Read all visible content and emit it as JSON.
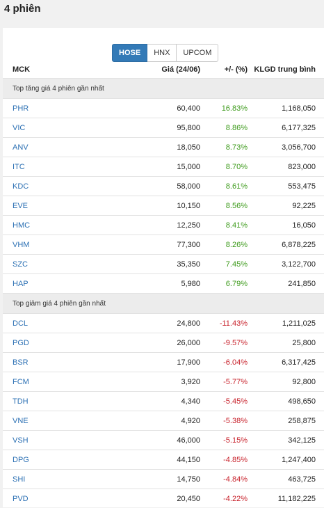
{
  "page": {
    "title": "4 phiên"
  },
  "tabs": [
    {
      "label": "HOSE",
      "active": true
    },
    {
      "label": "HNX",
      "active": false
    },
    {
      "label": "UPCOM",
      "active": false
    }
  ],
  "table": {
    "headers": {
      "symbol": "MCK",
      "price": "Giá (24/06)",
      "change": "+/- (%)",
      "volume": "KLGD trung bình"
    },
    "groups": [
      {
        "title": "Top tăng giá 4 phiên gần nhất",
        "direction": "up",
        "rows": [
          {
            "symbol": "PHR",
            "price": "60,400",
            "change": "16.83%",
            "volume": "1,168,050"
          },
          {
            "symbol": "VIC",
            "price": "95,800",
            "change": "8.86%",
            "volume": "6,177,325"
          },
          {
            "symbol": "ANV",
            "price": "18,050",
            "change": "8.73%",
            "volume": "3,056,700"
          },
          {
            "symbol": "ITC",
            "price": "15,000",
            "change": "8.70%",
            "volume": "823,000"
          },
          {
            "symbol": "KDC",
            "price": "58,000",
            "change": "8.61%",
            "volume": "553,475"
          },
          {
            "symbol": "EVE",
            "price": "10,150",
            "change": "8.56%",
            "volume": "92,225"
          },
          {
            "symbol": "HMC",
            "price": "12,250",
            "change": "8.41%",
            "volume": "16,050"
          },
          {
            "symbol": "VHM",
            "price": "77,300",
            "change": "8.26%",
            "volume": "6,878,225"
          },
          {
            "symbol": "SZC",
            "price": "35,350",
            "change": "7.45%",
            "volume": "3,122,700"
          },
          {
            "symbol": "HAP",
            "price": "5,980",
            "change": "6.79%",
            "volume": "241,850"
          }
        ]
      },
      {
        "title": "Top giảm giá 4 phiên gần nhất",
        "direction": "down",
        "rows": [
          {
            "symbol": "DCL",
            "price": "24,800",
            "change": "-11.43%",
            "volume": "1,211,025"
          },
          {
            "symbol": "PGD",
            "price": "26,000",
            "change": "-9.57%",
            "volume": "25,800"
          },
          {
            "symbol": "BSR",
            "price": "17,900",
            "change": "-6.04%",
            "volume": "6,317,425"
          },
          {
            "symbol": "FCM",
            "price": "3,920",
            "change": "-5.77%",
            "volume": "92,800"
          },
          {
            "symbol": "TDH",
            "price": "4,340",
            "change": "-5.45%",
            "volume": "498,650"
          },
          {
            "symbol": "VNE",
            "price": "4,920",
            "change": "-5.38%",
            "volume": "258,875"
          },
          {
            "symbol": "VSH",
            "price": "46,000",
            "change": "-5.15%",
            "volume": "342,125"
          },
          {
            "symbol": "DPG",
            "price": "44,150",
            "change": "-4.85%",
            "volume": "1,247,400"
          },
          {
            "symbol": "SHI",
            "price": "14,750",
            "change": "-4.84%",
            "volume": "463,725"
          },
          {
            "symbol": "PVD",
            "price": "20,450",
            "change": "-4.22%",
            "volume": "11,182,225"
          }
        ]
      }
    ]
  },
  "colors": {
    "accent": "#337ab7",
    "up": "#3c9a1a",
    "down": "#c8202a",
    "symbol": "#2a6fb3"
  }
}
